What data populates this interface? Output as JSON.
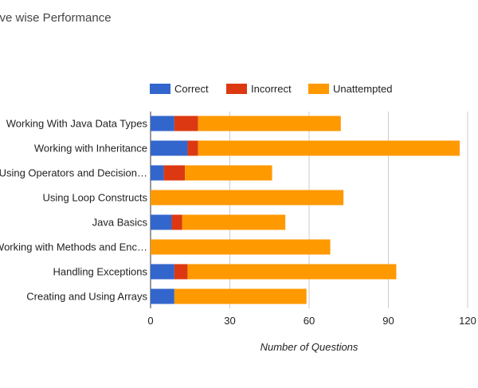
{
  "page": {
    "title": "tive wise Performance"
  },
  "colors": {
    "correct": "#3366cc",
    "incorrect": "#dc3912",
    "unattempted": "#ff9900",
    "grid": "#cccccc",
    "text": "#222222"
  },
  "chart_data": {
    "type": "bar",
    "orientation": "horizontal",
    "stacked": true,
    "categories": [
      "Working With Java Data Types",
      "Working with Inheritance",
      "Using Operators and Decision…",
      "Using Loop Constructs",
      "Java Basics",
      "Working with Methods and Enc…",
      "Handling Exceptions",
      "Creating and Using Arrays"
    ],
    "series": [
      {
        "name": "Correct",
        "color": "#3366cc",
        "values": [
          9,
          14,
          5,
          0,
          8,
          0,
          9,
          9
        ]
      },
      {
        "name": "Incorrect",
        "color": "#dc3912",
        "values": [
          9,
          4,
          8,
          0,
          4,
          0,
          5,
          0
        ]
      },
      {
        "name": "Unattempted",
        "color": "#ff9900",
        "values": [
          54,
          99,
          33,
          73,
          39,
          68,
          79,
          50
        ]
      }
    ],
    "xlabel": "Number of Questions",
    "ylabel": "",
    "xlim": [
      0,
      120
    ],
    "xticks": [
      "0",
      "30",
      "60",
      "90",
      "120"
    ],
    "xtick_values": [
      0,
      30,
      60,
      90,
      120
    ],
    "grid": true,
    "legend": "top"
  }
}
